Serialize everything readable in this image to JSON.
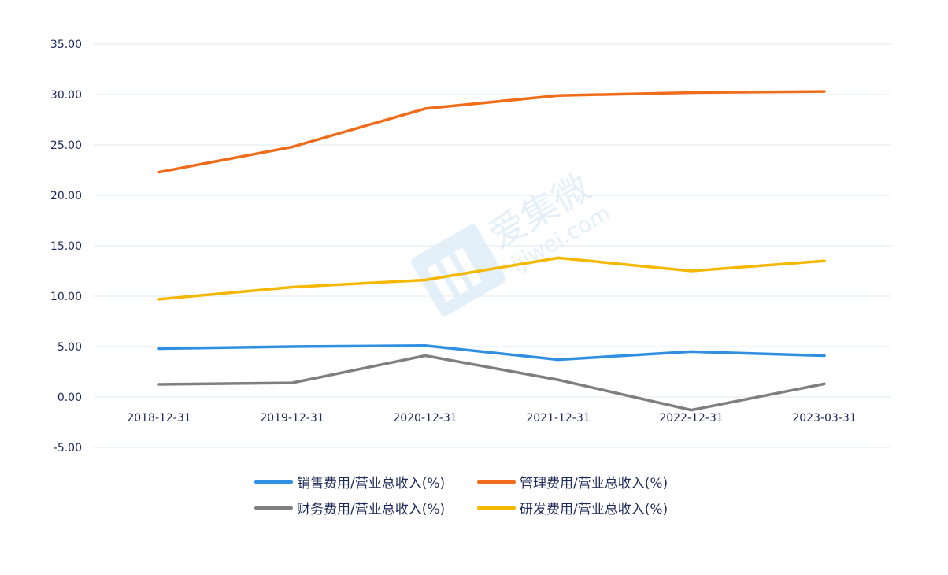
{
  "chart_data": {
    "type": "line",
    "title": "",
    "xlabel": "",
    "ylabel": "",
    "categories": [
      "2018-12-31",
      "2019-12-31",
      "2020-12-31",
      "2021-12-31",
      "2022-12-31",
      "2023-03-31"
    ],
    "ylim": [
      -5,
      35
    ],
    "yticks": [
      "35.00",
      "30.00",
      "25.00",
      "20.00",
      "15.00",
      "10.00",
      "5.00",
      "0.00",
      "-5.00"
    ],
    "grid": true,
    "legend_position": "bottom",
    "series": [
      {
        "name": "销售费用/营业总收入(%)",
        "color": "#2f8fe0",
        "values": [
          4.8,
          5.0,
          5.1,
          3.7,
          4.5,
          4.1
        ]
      },
      {
        "name": "管理费用/营业总收入(%)",
        "color": "#ef6c1a",
        "values": [
          22.3,
          24.8,
          28.6,
          29.9,
          30.2,
          30.3
        ]
      },
      {
        "name": "财务费用/营业总收入(%)",
        "color": "#7f7f7f",
        "values": [
          1.25,
          1.4,
          4.1,
          1.7,
          -1.3,
          1.3
        ]
      },
      {
        "name": "研发费用/营业总收入(%)",
        "color": "#f5b800",
        "values": [
          9.7,
          10.9,
          11.6,
          13.8,
          12.5,
          13.5
        ]
      }
    ],
    "watermark": "爱集微 ijiwei.com"
  }
}
